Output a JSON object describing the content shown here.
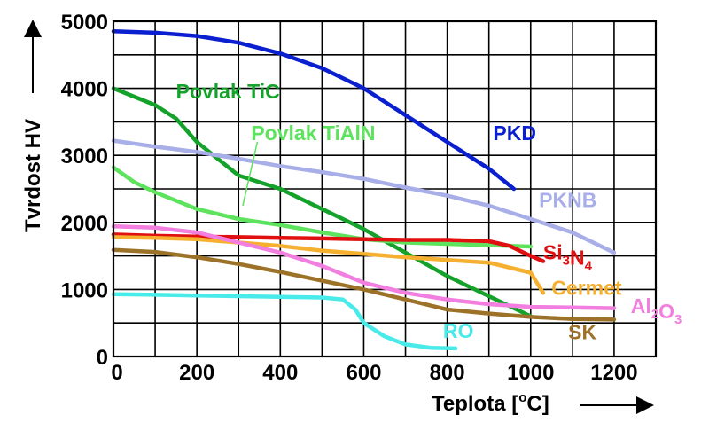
{
  "chart_data": {
    "type": "line",
    "title": "",
    "xlabel": "Teplota [",
    "xlabel_sup": "o",
    "xlabel_end": "C]",
    "ylabel": "Tvrdost HV",
    "xlim": [
      0,
      1300
    ],
    "ylim": [
      0,
      5000
    ],
    "x_ticks": [
      0,
      200,
      400,
      600,
      800,
      1000,
      1200
    ],
    "y_ticks": [
      0,
      1000,
      2000,
      3000,
      4000,
      5000
    ],
    "x_tick_labels": [
      "0",
      "200",
      "400",
      "600",
      "800",
      "1000",
      "1200"
    ],
    "y_tick_labels": [
      "0",
      "1000",
      "2000",
      "3000",
      "4000",
      "5000"
    ],
    "grid": true,
    "series": [
      {
        "name": "PKD",
        "color": "#0a1fd0",
        "points": [
          [
            0,
            4850
          ],
          [
            100,
            4830
          ],
          [
            200,
            4780
          ],
          [
            300,
            4680
          ],
          [
            400,
            4520
          ],
          [
            500,
            4300
          ],
          [
            600,
            4000
          ],
          [
            700,
            3600
          ],
          [
            800,
            3200
          ],
          [
            900,
            2800
          ],
          [
            960,
            2500
          ]
        ]
      },
      {
        "name": "Povlak TiC",
        "color": "#14a22a",
        "points": [
          [
            0,
            4000
          ],
          [
            100,
            3750
          ],
          [
            150,
            3550
          ],
          [
            200,
            3200
          ],
          [
            250,
            2950
          ],
          [
            300,
            2700
          ],
          [
            400,
            2500
          ],
          [
            500,
            2200
          ],
          [
            600,
            1900
          ],
          [
            700,
            1550
          ],
          [
            800,
            1200
          ],
          [
            900,
            900
          ],
          [
            1000,
            600
          ]
        ]
      },
      {
        "name": "Povlak TiAlN",
        "color": "#5de35d",
        "points": [
          [
            0,
            2820
          ],
          [
            50,
            2600
          ],
          [
            100,
            2450
          ],
          [
            200,
            2200
          ],
          [
            300,
            2050
          ],
          [
            400,
            1960
          ],
          [
            500,
            1850
          ],
          [
            600,
            1750
          ],
          [
            700,
            1700
          ],
          [
            800,
            1680
          ],
          [
            900,
            1660
          ],
          [
            1000,
            1640
          ]
        ]
      },
      {
        "name": "PKNB",
        "color": "#a8aee8",
        "points": [
          [
            0,
            3220
          ],
          [
            100,
            3130
          ],
          [
            200,
            3050
          ],
          [
            300,
            2950
          ],
          [
            400,
            2840
          ],
          [
            500,
            2750
          ],
          [
            600,
            2650
          ],
          [
            700,
            2520
          ],
          [
            800,
            2400
          ],
          [
            900,
            2250
          ],
          [
            1000,
            2050
          ],
          [
            1100,
            1850
          ],
          [
            1200,
            1550
          ]
        ]
      },
      {
        "name": "Si3N4",
        "color": "#e01010",
        "points": [
          [
            0,
            1820
          ],
          [
            100,
            1800
          ],
          [
            200,
            1790
          ],
          [
            300,
            1780
          ],
          [
            400,
            1770
          ],
          [
            500,
            1760
          ],
          [
            600,
            1750
          ],
          [
            700,
            1740
          ],
          [
            800,
            1740
          ],
          [
            900,
            1720
          ],
          [
            950,
            1650
          ],
          [
            1000,
            1500
          ],
          [
            1030,
            1420
          ]
        ]
      },
      {
        "name": "Cermet",
        "color": "#f5b030",
        "points": [
          [
            0,
            1780
          ],
          [
            100,
            1770
          ],
          [
            200,
            1750
          ],
          [
            300,
            1700
          ],
          [
            400,
            1650
          ],
          [
            500,
            1580
          ],
          [
            600,
            1530
          ],
          [
            700,
            1480
          ],
          [
            800,
            1440
          ],
          [
            900,
            1400
          ],
          [
            1000,
            1250
          ],
          [
            1030,
            950
          ]
        ]
      },
      {
        "name": "Al2O3",
        "color": "#f27ee0",
        "points": [
          [
            0,
            1940
          ],
          [
            100,
            1920
          ],
          [
            200,
            1850
          ],
          [
            300,
            1700
          ],
          [
            400,
            1550
          ],
          [
            500,
            1350
          ],
          [
            600,
            1100
          ],
          [
            700,
            950
          ],
          [
            800,
            850
          ],
          [
            900,
            780
          ],
          [
            1000,
            740
          ],
          [
            1100,
            730
          ],
          [
            1200,
            720
          ]
        ]
      },
      {
        "name": "SK",
        "color": "#9c7228",
        "points": [
          [
            0,
            1590
          ],
          [
            100,
            1560
          ],
          [
            200,
            1480
          ],
          [
            300,
            1380
          ],
          [
            400,
            1260
          ],
          [
            500,
            1130
          ],
          [
            600,
            1000
          ],
          [
            700,
            850
          ],
          [
            800,
            700
          ],
          [
            900,
            640
          ],
          [
            1000,
            590
          ],
          [
            1100,
            560
          ],
          [
            1200,
            550
          ]
        ]
      },
      {
        "name": "RO",
        "color": "#49eaea",
        "points": [
          [
            0,
            930
          ],
          [
            100,
            920
          ],
          [
            200,
            910
          ],
          [
            300,
            900
          ],
          [
            400,
            890
          ],
          [
            500,
            880
          ],
          [
            550,
            850
          ],
          [
            580,
            700
          ],
          [
            600,
            500
          ],
          [
            650,
            300
          ],
          [
            700,
            180
          ],
          [
            760,
            130
          ],
          [
            820,
            120
          ]
        ]
      }
    ],
    "labels": [
      {
        "text": "PKD",
        "x": 910,
        "y": 3230,
        "color": "#0a1fd0"
      },
      {
        "text": "Povlak TiC",
        "x": 150,
        "y": 3850,
        "color": "#14a22a"
      },
      {
        "text": "Povlak TiAlN",
        "x": 330,
        "y": 3230,
        "color": "#5de35d"
      },
      {
        "text": "PKNB",
        "x": 1020,
        "y": 2230,
        "color": "#a8aee8"
      },
      {
        "text": "Si",
        "sub": "3",
        "text2": "N",
        "sub2": "4",
        "x": 1030,
        "y": 1450,
        "color": "#e01010"
      },
      {
        "text": "Cermet",
        "x": 1050,
        "y": 920,
        "color": "#f5b030"
      },
      {
        "text": "Al",
        "sub": "2",
        "text2": "O",
        "sub2": "3",
        "x": 1240,
        "y": 650,
        "color": "#f27ee0"
      },
      {
        "text": "RO",
        "x": 790,
        "y": 280,
        "color": "#49eaea"
      },
      {
        "text": "SK",
        "x": 1090,
        "y": 260,
        "color": "#9c7228"
      }
    ]
  }
}
